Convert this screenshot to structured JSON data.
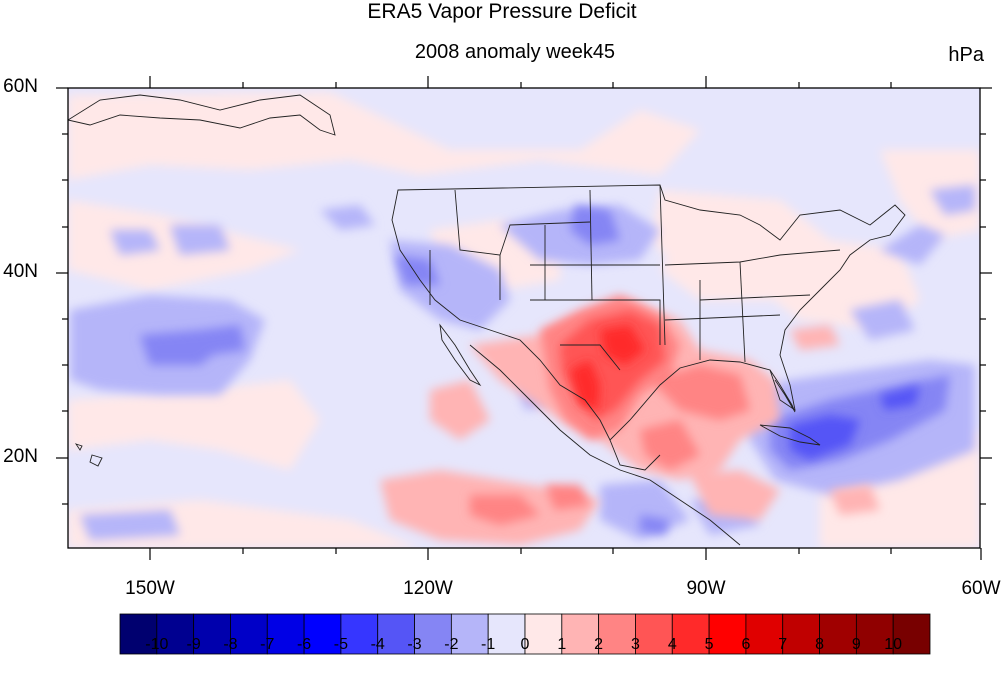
{
  "title": "ERA5 Vapor Pressure Deficit",
  "subtitle": "2008 anomaly week45",
  "units": "hPa",
  "lat_labels": [
    "60N",
    "40N",
    "20N"
  ],
  "lon_labels": [
    "150W",
    "120W",
    "90W",
    "60W"
  ],
  "colorbar": {
    "labels": [
      "-10",
      "-9",
      "-8",
      "-7",
      "-6",
      "-5",
      "-4",
      "-3",
      "-2",
      "-1",
      "0",
      "1",
      "2",
      "3",
      "4",
      "5",
      "6",
      "7",
      "8",
      "9",
      "10"
    ],
    "colors": [
      "#00006f",
      "#000090",
      "#0000ad",
      "#0000c8",
      "#0000e6",
      "#0000ff",
      "#3636ff",
      "#5555f6",
      "#8585f4",
      "#b5b5f9",
      "#e6e6fc",
      "#ffe8e8",
      "#ffb4b4",
      "#ff8484",
      "#ff5555",
      "#ff2a2a",
      "#ff0000",
      "#e00000",
      "#c00000",
      "#a00000",
      "#900000",
      "#780000"
    ]
  },
  "map_data": {
    "extent": {
      "lon": [
        -160,
        -60
      ],
      "lat": [
        10,
        60
      ]
    },
    "anomaly_regions": [
      {
        "name": "Texas / northern Mexico",
        "value": 5
      },
      {
        "name": "Gulf of Mexico",
        "value": 3
      },
      {
        "name": "Caribbean / western Atlantic",
        "value": -4
      },
      {
        "name": "Central Pacific",
        "value": -2
      },
      {
        "name": "Great Basin",
        "value": -2
      },
      {
        "name": "Northern Plains",
        "value": -2
      }
    ]
  }
}
